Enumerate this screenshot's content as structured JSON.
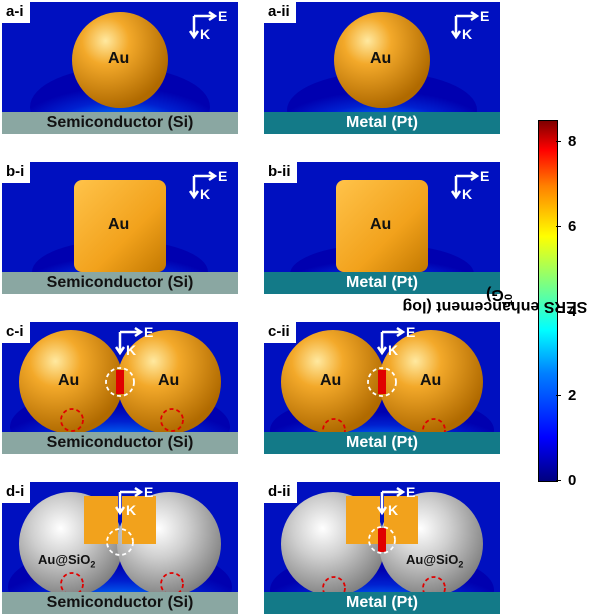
{
  "panels": [
    {
      "label": "a-i",
      "substrate": "Semiconductor (Si)",
      "particle": "Au"
    },
    {
      "label": "a-ii",
      "substrate": "Metal (Pt)",
      "particle": "Au"
    },
    {
      "label": "b-i",
      "substrate": "Semiconductor (Si)",
      "particle": "Au"
    },
    {
      "label": "b-ii",
      "substrate": "Metal (Pt)",
      "particle": "Au"
    },
    {
      "label": "c-i",
      "substrate": "Semiconductor (Si)",
      "particle": "Au"
    },
    {
      "label": "c-ii",
      "substrate": "Metal (Pt)",
      "particle": "Au"
    },
    {
      "label": "d-i",
      "substrate": "Semiconductor (Si)",
      "particle": "Au@SiO",
      "particle_sub": "2"
    },
    {
      "label": "d-ii",
      "substrate": "Metal (Pt)",
      "particle": "Au@SiO",
      "particle_sub": "2"
    }
  ],
  "axes": {
    "e_label": "E",
    "k_label": "K"
  },
  "colorbar": {
    "title": "SERS enhancement (log",
    "title_sub": "10",
    "title_tail": "G)",
    "ticks": [
      "0",
      "2",
      "4",
      "6",
      "8"
    ],
    "range": [
      0,
      8.5
    ],
    "colors": [
      "#00007f",
      "#0000ff",
      "#00ffff",
      "#ffff00",
      "#ff0000",
      "#7f0000"
    ]
  }
}
